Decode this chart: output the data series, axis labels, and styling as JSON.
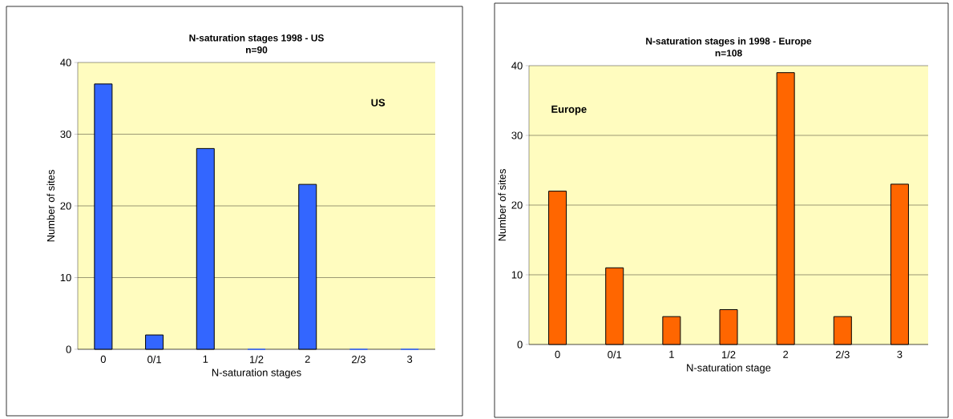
{
  "chart_data": [
    {
      "type": "bar",
      "title": "N-saturation stages 1998  - US",
      "subtitle": "n=90",
      "xlabel": "N-saturation stages",
      "ylabel": "Number of  sites",
      "categories": [
        "0",
        "0/1",
        "1",
        "1/2",
        "2",
        "2/3",
        "3"
      ],
      "values": [
        37,
        2,
        28,
        0,
        23,
        0,
        0
      ],
      "color": "#3366ff",
      "ylim": [
        0,
        40
      ],
      "yticks": [
        0,
        10,
        20,
        30,
        40
      ],
      "grid": "y",
      "annotations": [
        "US"
      ]
    },
    {
      "type": "bar",
      "title": "N-saturation stages in 1998 - Europe",
      "subtitle": "n=108",
      "xlabel": "N-saturation stage",
      "ylabel": "Number of sites",
      "categories": [
        "0",
        "0/1",
        "1",
        "1/2",
        "2",
        "2/3",
        "3"
      ],
      "values": [
        22,
        11,
        4,
        5,
        39,
        4,
        23
      ],
      "color": "#ff6600",
      "ylim": [
        0,
        40
      ],
      "yticks": [
        0,
        10,
        20,
        30,
        40
      ],
      "grid": "y",
      "annotations": [
        "Europe"
      ]
    }
  ]
}
